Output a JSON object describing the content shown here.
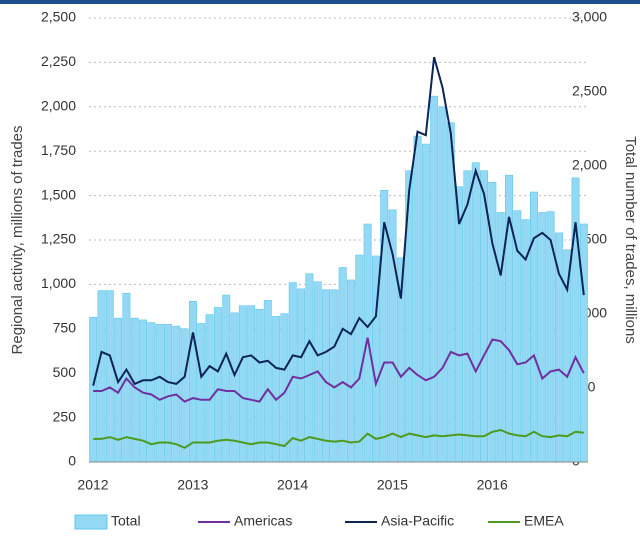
{
  "chart_data": {
    "type": "bar-line",
    "categories": [
      "2012",
      null,
      null,
      null,
      null,
      null,
      null,
      null,
      null,
      null,
      null,
      null,
      "2013",
      null,
      null,
      null,
      null,
      null,
      null,
      null,
      null,
      null,
      null,
      null,
      "2014",
      null,
      null,
      null,
      null,
      null,
      null,
      null,
      null,
      null,
      null,
      null,
      "2015",
      null,
      null,
      null,
      null,
      null,
      null,
      null,
      null,
      null,
      null,
      null,
      "2016",
      null,
      null,
      null,
      null,
      null,
      null,
      null,
      null,
      null,
      null,
      null
    ],
    "y_label": "Regional activity, millions of trades",
    "y2_label": "Total number of trades, millions",
    "ylim": [
      0,
      2500
    ],
    "yticks": [
      0,
      250,
      500,
      750,
      {
        "value": 1000,
        "label": "1,000"
      },
      {
        "value": 1250,
        "label": "1,250"
      },
      {
        "value": 1500,
        "label": "1,500"
      },
      {
        "value": 1750,
        "label": "1,750"
      },
      {
        "value": 2000,
        "label": "2,000"
      },
      {
        "value": 2250,
        "label": "2,250"
      },
      {
        "value": 2500,
        "label": "2,500"
      }
    ],
    "y2lim": [
      0,
      3000
    ],
    "y2ticks": [
      0,
      500,
      {
        "value": 1000,
        "label": "1,000"
      },
      {
        "value": 1500,
        "label": "1,500"
      },
      {
        "value": 2000,
        "label": "2,000"
      },
      {
        "value": 2500,
        "label": "2,500"
      },
      {
        "value": 3000,
        "label": "3,000"
      }
    ],
    "grid": true,
    "series": [
      {
        "name": "Total",
        "kind": "bar",
        "axis": "y2",
        "color": "#93d9f4",
        "values": [
          978,
          1158,
          1158,
          972,
          1140,
          972,
          960,
          942,
          930,
          930,
          918,
          900,
          1086,
          936,
          996,
          1044,
          1128,
          1008,
          1056,
          1056,
          1032,
          1092,
          984,
          1002,
          1212,
          1170,
          1272,
          1218,
          1164,
          1164,
          1314,
          1230,
          1398,
          1608,
          1392,
          1836,
          1704,
          1380,
          1968,
          2202,
          2148,
          2472,
          2400,
          2292,
          1860,
          1968,
          2022,
          1968,
          1890,
          1686,
          1938,
          1698,
          1638,
          1824,
          1686,
          1692,
          1548,
          1434,
          1920,
          1608
        ]
      },
      {
        "name": "Americas",
        "kind": "line",
        "color": "#7030a0",
        "values": [
          400,
          400,
          420,
          390,
          470,
          420,
          390,
          380,
          350,
          370,
          380,
          340,
          360,
          350,
          350,
          410,
          400,
          400,
          360,
          350,
          340,
          410,
          350,
          390,
          480,
          470,
          490,
          510,
          450,
          420,
          450,
          420,
          470,
          700,
          440,
          560,
          560,
          480,
          530,
          490,
          460,
          480,
          530,
          620,
          600,
          610,
          510,
          600,
          690,
          680,
          630,
          550,
          560,
          600,
          470,
          510,
          520,
          480,
          590,
          500
        ]
      },
      {
        "name": "Asia-Pacific",
        "kind": "line",
        "color": "#0d2456",
        "values": [
          430,
          620,
          600,
          450,
          520,
          440,
          460,
          460,
          480,
          450,
          440,
          480,
          730,
          480,
          540,
          510,
          610,
          490,
          590,
          600,
          560,
          570,
          530,
          520,
          600,
          590,
          680,
          600,
          620,
          650,
          750,
          720,
          810,
          760,
          820,
          1350,
          1170,
          920,
          1530,
          1860,
          1840,
          2280,
          2110,
          1850,
          1340,
          1450,
          1640,
          1510,
          1230,
          1050,
          1380,
          1190,
          1140,
          1260,
          1290,
          1250,
          1060,
          970,
          1350,
          940
        ]
      },
      {
        "name": "EMEA",
        "kind": "line",
        "color": "#4e9a1f",
        "values": [
          130,
          130,
          140,
          125,
          140,
          130,
          120,
          100,
          110,
          110,
          100,
          80,
          110,
          110,
          110,
          120,
          125,
          120,
          110,
          100,
          110,
          110,
          100,
          90,
          135,
          120,
          140,
          130,
          120,
          115,
          120,
          110,
          115,
          160,
          130,
          140,
          160,
          140,
          160,
          150,
          140,
          150,
          145,
          150,
          155,
          150,
          145,
          145,
          170,
          180,
          160,
          150,
          145,
          170,
          145,
          140,
          150,
          145,
          170,
          165
        ]
      }
    ]
  }
}
